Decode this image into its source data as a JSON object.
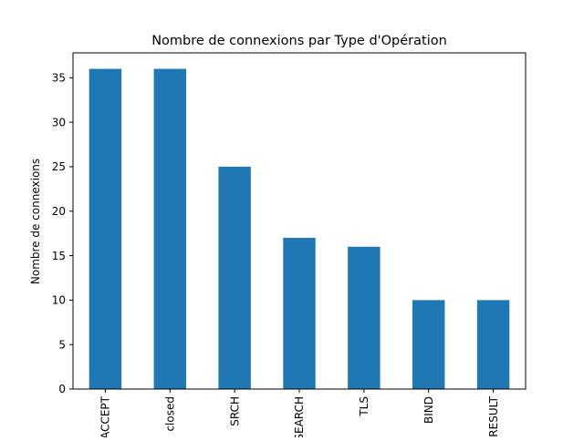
{
  "chart_data": {
    "type": "bar",
    "title": "Nombre de connexions par Type d'Opération",
    "xlabel": "",
    "ylabel": "Nombre de connexions",
    "categories": [
      "ACCEPT",
      "closed",
      "SRCH",
      "SEARCH",
      "TLS",
      "BIND",
      "RESULT"
    ],
    "values": [
      36,
      36,
      25,
      17,
      16,
      10,
      10
    ],
    "ylim": [
      0,
      37.8
    ],
    "yticks": [
      0,
      5,
      10,
      15,
      20,
      25,
      30,
      35
    ],
    "grid": false,
    "bar_color": "#1f77b4",
    "x_tick_rotation": 90
  }
}
